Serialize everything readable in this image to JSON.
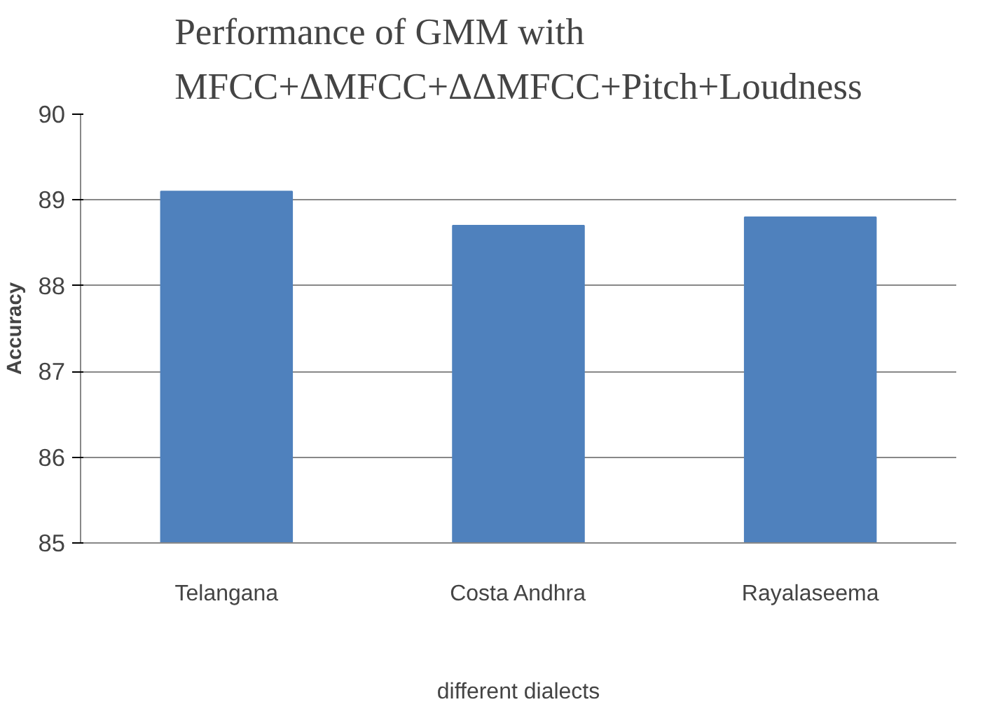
{
  "chart_data": {
    "type": "bar",
    "title": "Performance of GMM with\nMFCC+ΔMFCC+ΔΔMFCC+Pitch+Loudness",
    "xlabel": "different dialects",
    "ylabel": "Accuracy",
    "categories": [
      "Telangana",
      "Costa Andhra",
      "Rayalaseema"
    ],
    "values": [
      89.1,
      88.7,
      88.8
    ],
    "color": "#4f81bd",
    "ylim": [
      85,
      90
    ],
    "yticks": [
      85,
      86,
      87,
      88,
      89,
      90
    ],
    "grid": "y"
  }
}
